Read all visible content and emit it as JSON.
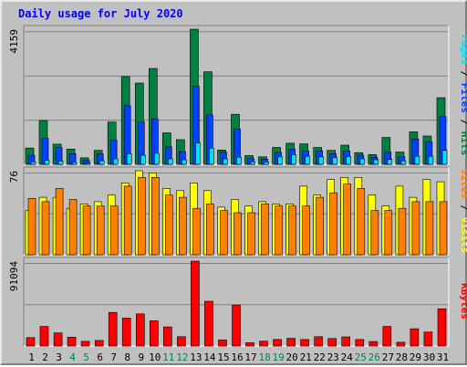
{
  "chart_data": {
    "type": "bar",
    "title": "Daily usage for July 2020",
    "categories": [
      "1",
      "2",
      "3",
      "4",
      "5",
      "6",
      "7",
      "8",
      "9",
      "10",
      "11",
      "12",
      "13",
      "14",
      "15",
      "16",
      "17",
      "18",
      "19",
      "20",
      "21",
      "22",
      "23",
      "24",
      "25",
      "26",
      "27",
      "28",
      "29",
      "30",
      "31"
    ],
    "weekend_days": [
      "4",
      "5",
      "11",
      "12",
      "18",
      "19",
      "25",
      "26"
    ],
    "colors": {
      "hits": "#008040",
      "files": "#0040ff",
      "pages": "#00e0ff",
      "visits": "#ffff00",
      "sites": "#ff8000",
      "kbytes": "#ff0000",
      "title": "#0000ff",
      "weekday_label": "#000000",
      "weekend_label": "#00805c",
      "plot_bg": "#c0c0c0",
      "gridline": "#808080"
    },
    "panels": [
      {
        "id": "hits-files-pages",
        "max_label": "4159",
        "ylim": [
          0,
          4159
        ],
        "legend": [
          {
            "text": "Pages",
            "color": "#00e0ff"
          },
          {
            "text": " / ",
            "color": "#000000"
          },
          {
            "text": "Files",
            "color": "#0040ff"
          },
          {
            "text": " / ",
            "color": "#000000"
          },
          {
            "text": "Hits",
            "color": "#008040"
          }
        ],
        "series": [
          {
            "name": "Hits",
            "color": "#008040",
            "values": [
              500,
              1350,
              620,
              470,
              200,
              430,
              1300,
              2700,
              2500,
              2950,
              970,
              760,
              4159,
              2850,
              440,
              1540,
              270,
              230,
              520,
              650,
              630,
              520,
              430,
              590,
              360,
              300,
              830,
              380,
              1000,
              870,
              2050
            ]
          },
          {
            "name": "Files",
            "color": "#0040ff",
            "values": [
              280,
              800,
              520,
              330,
              130,
              320,
              750,
              1800,
              1300,
              1400,
              540,
              390,
              2400,
              1520,
              370,
              1090,
              180,
              160,
              370,
              470,
              410,
              420,
              330,
              410,
              280,
              220,
              370,
              240,
              780,
              700,
              1470
            ]
          },
          {
            "name": "Pages",
            "color": "#00e0ff",
            "values": [
              80,
              120,
              100,
              60,
              40,
              110,
              170,
              330,
              280,
              340,
              170,
              140,
              660,
              500,
              170,
              220,
              80,
              70,
              230,
              300,
              250,
              230,
              210,
              240,
              170,
              140,
              150,
              110,
              250,
              250,
              430
            ]
          }
        ]
      },
      {
        "id": "visits-sites",
        "max_label": "76",
        "ylim": [
          0,
          76
        ],
        "legend": [
          {
            "text": "Sites",
            "color": "#ff8000"
          },
          {
            "text": " / ",
            "color": "#000000"
          },
          {
            "text": "Visits",
            "color": "#ffff00"
          }
        ],
        "series": [
          {
            "name": "Visits",
            "color": "#ffff00",
            "values": [
              40,
              52,
              52,
              42,
              46,
              48,
              54,
              65,
              76,
              74,
              60,
              58,
              65,
              58,
              43,
              50,
              44,
              48,
              46,
              46,
              62,
              54,
              68,
              70,
              70,
              54,
              44,
              62,
              52,
              68,
              66
            ]
          },
          {
            "name": "Sites",
            "color": "#ff8000",
            "values": [
              51,
              48,
              60,
              50,
              44,
              44,
              44,
              62,
              70,
              70,
              54,
              52,
              42,
              46,
              40,
              38,
              38,
              46,
              44,
              44,
              44,
              52,
              56,
              64,
              60,
              40,
              40,
              42,
              48,
              48,
              48
            ]
          }
        ]
      },
      {
        "id": "kbytes",
        "max_label": "91094",
        "ylim": [
          0,
          91094
        ],
        "legend": [
          {
            "text": "KBytes",
            "color": "#ff0000"
          }
        ],
        "series": [
          {
            "name": "KBytes",
            "color": "#ff0000",
            "values": [
              9000,
              21000,
              14000,
              9500,
              5000,
              6000,
              36000,
              30000,
              34500,
              27000,
              20500,
              10000,
              91094,
              48000,
              6500,
              44000,
              3500,
              5200,
              7000,
              8200,
              7000,
              10000,
              8000,
              9800,
              7000,
              4800,
              21000,
              4000,
              18500,
              15000,
              40000
            ]
          }
        ]
      }
    ]
  }
}
